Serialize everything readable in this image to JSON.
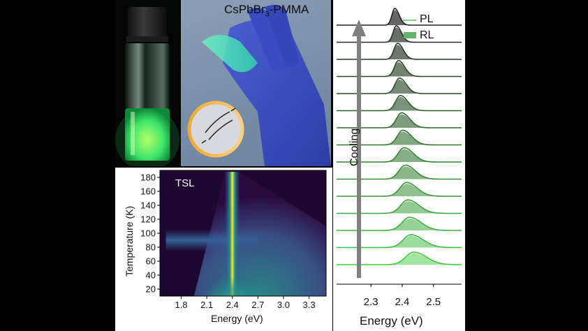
{
  "photo_film": {
    "label_main": "CsPbBr",
    "label_sub": "3",
    "label_rest": "-PMMA"
  },
  "chart_data": [
    {
      "type": "heatmap",
      "annotation": "TSL",
      "xlabel": "Energy (eV)",
      "ylabel": "Temperature (K)",
      "x_ticks": [
        "1.8",
        "2.1",
        "2.4",
        "2.7",
        "3.0",
        "3.3"
      ],
      "y_ticks": [
        "20",
        "40",
        "60",
        "80",
        "100",
        "120",
        "140",
        "160",
        "180"
      ],
      "xlim": [
        1.55,
        3.5
      ],
      "ylim": [
        10,
        190
      ],
      "features": {
        "main_band_energy": 2.4,
        "horizontal_band_temperature": 90,
        "colormap": [
          "#2b0a3d",
          "#3b528b",
          "#21918c",
          "#5ec962",
          "#fde725"
        ]
      }
    },
    {
      "type": "line",
      "annotation": "Cooling",
      "xlabel": "Energy (eV)",
      "x_ticks": [
        "2.3",
        "2.4",
        "2.5"
      ],
      "xlim": [
        2.19,
        2.59
      ],
      "legend": [
        {
          "name": "PL",
          "style": "line",
          "color": "#7ed67e"
        },
        {
          "name": "RL",
          "style": "filled",
          "color": "#5fb56a"
        }
      ],
      "legend_position": "top-right",
      "peak_energies_top_to_bottom": [
        2.376,
        2.381,
        2.385,
        2.388,
        2.391,
        2.394,
        2.398,
        2.402,
        2.406,
        2.41,
        2.414,
        2.418,
        2.423,
        2.428,
        2.437
      ],
      "colors": {
        "pl_cold": "#222222",
        "pl_warm": "#3fc83f",
        "rl_cold": "#4b4b4b",
        "rl_warm": "#8fe08f"
      }
    }
  ]
}
